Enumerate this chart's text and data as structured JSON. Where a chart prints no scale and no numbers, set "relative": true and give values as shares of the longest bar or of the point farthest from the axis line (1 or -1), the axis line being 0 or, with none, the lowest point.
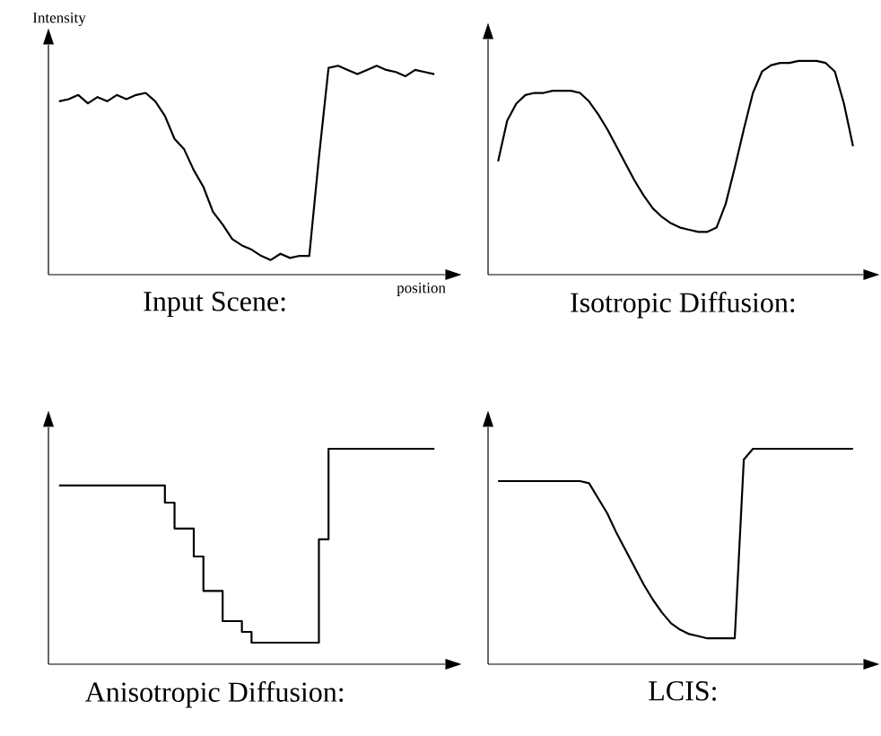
{
  "chart_data": [
    {
      "type": "line",
      "title": "Input Scene:",
      "xlabel": "position",
      "ylabel": "Intensity",
      "relative": true,
      "color": "#000000",
      "categories": [
        null,
        null,
        null,
        null,
        null,
        null,
        null,
        null,
        null,
        null,
        null,
        null,
        null,
        null,
        null,
        null,
        null,
        null,
        null,
        null,
        null,
        null,
        null,
        null,
        null,
        null,
        null,
        null,
        null,
        null,
        null,
        null,
        null,
        null,
        null,
        null,
        null,
        null,
        null,
        null
      ],
      "values": [
        0.83,
        0.84,
        0.86,
        0.82,
        0.85,
        0.83,
        0.86,
        0.84,
        0.86,
        0.87,
        0.83,
        0.76,
        0.65,
        0.6,
        0.5,
        0.42,
        0.3,
        0.24,
        0.17,
        0.14,
        0.12,
        0.09,
        0.07,
        0.1,
        0.08,
        0.09,
        0.09,
        0.56,
        0.99,
        1.0,
        0.98,
        0.96,
        0.98,
        1.0,
        0.98,
        0.97,
        0.95,
        0.98,
        0.97,
        0.96
      ]
    },
    {
      "type": "line",
      "title": "Isotropic Diffusion:",
      "relative": true,
      "color": "#000000",
      "categories": [
        null,
        null,
        null,
        null,
        null,
        null,
        null,
        null,
        null,
        null,
        null,
        null,
        null,
        null,
        null,
        null,
        null,
        null,
        null,
        null,
        null,
        null,
        null,
        null,
        null,
        null,
        null,
        null,
        null,
        null,
        null,
        null,
        null,
        null,
        null,
        null,
        null,
        null,
        null,
        null
      ],
      "values": [
        0.53,
        0.72,
        0.8,
        0.84,
        0.85,
        0.85,
        0.86,
        0.86,
        0.86,
        0.85,
        0.81,
        0.75,
        0.68,
        0.6,
        0.52,
        0.44,
        0.37,
        0.31,
        0.27,
        0.24,
        0.22,
        0.21,
        0.2,
        0.2,
        0.22,
        0.33,
        0.5,
        0.68,
        0.85,
        0.95,
        0.98,
        0.99,
        0.99,
        1.0,
        1.0,
        1.0,
        0.99,
        0.95,
        0.8,
        0.6
      ]
    },
    {
      "type": "step",
      "title": "Anisotropic Diffusion:",
      "relative": true,
      "color": "#000000",
      "categories": [
        null,
        null,
        null,
        null,
        null,
        null,
        null,
        null,
        null,
        null,
        null,
        null,
        null,
        null,
        null,
        null,
        null,
        null,
        null,
        null,
        null,
        null,
        null,
        null,
        null,
        null,
        null,
        null,
        null,
        null,
        null,
        null,
        null,
        null,
        null,
        null,
        null,
        null,
        null,
        null
      ],
      "values": [
        0.83,
        0.83,
        0.83,
        0.83,
        0.83,
        0.83,
        0.83,
        0.83,
        0.83,
        0.83,
        0.83,
        0.75,
        0.63,
        0.63,
        0.5,
        0.34,
        0.34,
        0.2,
        0.2,
        0.15,
        0.1,
        0.1,
        0.1,
        0.1,
        0.1,
        0.1,
        0.1,
        0.58,
        1.0,
        1.0,
        1.0,
        1.0,
        1.0,
        1.0,
        1.0,
        1.0,
        1.0,
        1.0,
        1.0,
        1.0
      ]
    },
    {
      "type": "line",
      "title": "LCIS:",
      "relative": true,
      "color": "#000000",
      "categories": [
        null,
        null,
        null,
        null,
        null,
        null,
        null,
        null,
        null,
        null,
        null,
        null,
        null,
        null,
        null,
        null,
        null,
        null,
        null,
        null,
        null,
        null,
        null,
        null,
        null,
        null,
        null,
        null,
        null,
        null,
        null,
        null,
        null,
        null,
        null,
        null,
        null,
        null,
        null,
        null
      ],
      "values": [
        0.85,
        0.85,
        0.85,
        0.85,
        0.85,
        0.85,
        0.85,
        0.85,
        0.85,
        0.85,
        0.84,
        0.77,
        0.7,
        0.61,
        0.53,
        0.45,
        0.37,
        0.3,
        0.24,
        0.19,
        0.16,
        0.14,
        0.13,
        0.12,
        0.12,
        0.12,
        0.12,
        0.95,
        1.0,
        1.0,
        1.0,
        1.0,
        1.0,
        1.0,
        1.0,
        1.0,
        1.0,
        1.0,
        1.0,
        1.0
      ]
    }
  ]
}
